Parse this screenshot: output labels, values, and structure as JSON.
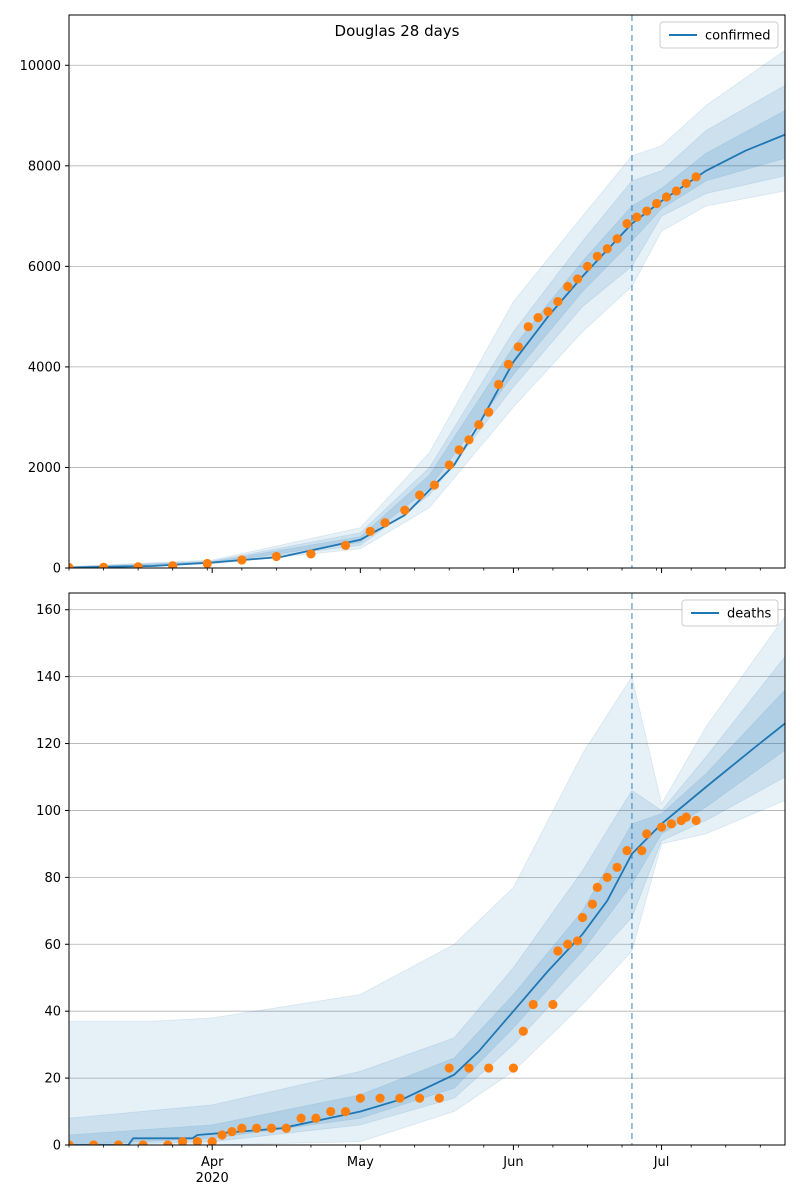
{
  "figure": {
    "title": "Douglas 28 days"
  },
  "chart_data": [
    {
      "type": "line",
      "title": "Douglas 28 days",
      "xlabel": "",
      "ylabel": "",
      "x_axis": {
        "range": [
          "2020-03-03",
          "2020-07-26"
        ],
        "tick_labels": [
          {
            "date": "2020-04-01",
            "label": "Apr",
            "sublabel": "2020"
          },
          {
            "date": "2020-05-01",
            "label": "May",
            "sublabel": ""
          },
          {
            "date": "2020-06-01",
            "label": "Jun",
            "sublabel": ""
          },
          {
            "date": "2020-07-01",
            "label": "Jul",
            "sublabel": ""
          }
        ]
      },
      "ylim": [
        0,
        11000
      ],
      "yticks": [
        0,
        2000,
        4000,
        6000,
        8000,
        10000
      ],
      "ytick_labels": [
        "0",
        "2000",
        "4000",
        "6000",
        "8000",
        "10000"
      ],
      "grid": "horizontal",
      "legend": {
        "position": "top-right",
        "entries": [
          "confirmed"
        ]
      },
      "vline_date": "2020-06-25",
      "colors": {
        "model": "#1f77b4",
        "observed": "#ff7f0e",
        "band": "#1f77b4",
        "vline": "#1f77b4"
      },
      "series": [
        {
          "name": "confirmed",
          "kind": "line",
          "points": [
            [
              "2020-03-03",
              10
            ],
            [
              "2020-03-20",
              40
            ],
            [
              "2020-04-01",
              110
            ],
            [
              "2020-04-15",
              220
            ],
            [
              "2020-05-01",
              560
            ],
            [
              "2020-05-10",
              1050
            ],
            [
              "2020-05-20",
              2050
            ],
            [
              "2020-05-25",
              2850
            ],
            [
              "2020-06-01",
              4100
            ],
            [
              "2020-06-08",
              5000
            ],
            [
              "2020-06-15",
              5800
            ],
            [
              "2020-06-25",
              6850
            ],
            [
              "2020-07-01",
              7300
            ],
            [
              "2020-07-10",
              7900
            ],
            [
              "2020-07-18",
              8300
            ],
            [
              "2020-07-26",
              8620
            ]
          ]
        },
        {
          "name": "observed",
          "kind": "points",
          "points": [
            [
              "2020-03-03",
              10
            ],
            [
              "2020-03-10",
              15
            ],
            [
              "2020-03-17",
              25
            ],
            [
              "2020-03-24",
              45
            ],
            [
              "2020-03-31",
              90
            ],
            [
              "2020-04-07",
              160
            ],
            [
              "2020-04-14",
              230
            ],
            [
              "2020-04-21",
              280
            ],
            [
              "2020-04-28",
              450
            ],
            [
              "2020-05-03",
              730
            ],
            [
              "2020-05-06",
              900
            ],
            [
              "2020-05-10",
              1150
            ],
            [
              "2020-05-13",
              1450
            ],
            [
              "2020-05-16",
              1650
            ],
            [
              "2020-05-19",
              2050
            ],
            [
              "2020-05-21",
              2350
            ],
            [
              "2020-05-23",
              2550
            ],
            [
              "2020-05-25",
              2850
            ],
            [
              "2020-05-27",
              3100
            ],
            [
              "2020-05-29",
              3650
            ],
            [
              "2020-05-31",
              4050
            ],
            [
              "2020-06-02",
              4400
            ],
            [
              "2020-06-04",
              4800
            ],
            [
              "2020-06-06",
              4980
            ],
            [
              "2020-06-08",
              5100
            ],
            [
              "2020-06-10",
              5300
            ],
            [
              "2020-06-12",
              5600
            ],
            [
              "2020-06-14",
              5750
            ],
            [
              "2020-06-16",
              6000
            ],
            [
              "2020-06-18",
              6200
            ],
            [
              "2020-06-20",
              6350
            ],
            [
              "2020-06-22",
              6550
            ],
            [
              "2020-06-24",
              6850
            ],
            [
              "2020-06-26",
              6980
            ],
            [
              "2020-06-28",
              7100
            ],
            [
              "2020-06-30",
              7250
            ],
            [
              "2020-07-02",
              7380
            ],
            [
              "2020-07-04",
              7500
            ],
            [
              "2020-07-06",
              7650
            ],
            [
              "2020-07-08",
              7780
            ]
          ]
        }
      ],
      "bands": [
        {
          "level": "outer",
          "points": [
            [
              "2020-03-03",
              0,
              30
            ],
            [
              "2020-04-01",
              80,
              160
            ],
            [
              "2020-05-01",
              380,
              800
            ],
            [
              "2020-05-15",
              1200,
              2300
            ],
            [
              "2020-06-01",
              3200,
              5300
            ],
            [
              "2020-06-15",
              4700,
              7000
            ],
            [
              "2020-06-25",
              5600,
              8200
            ],
            [
              "2020-07-01",
              6700,
              8400
            ],
            [
              "2020-07-10",
              7200,
              9200
            ],
            [
              "2020-07-26",
              7500,
              10300
            ]
          ]
        },
        {
          "level": "middle",
          "points": [
            [
              "2020-03-03",
              2,
              22
            ],
            [
              "2020-04-01",
              90,
              140
            ],
            [
              "2020-05-01",
              450,
              700
            ],
            [
              "2020-05-15",
              1450,
              2000
            ],
            [
              "2020-06-01",
              3600,
              4700
            ],
            [
              "2020-06-15",
              5200,
              6500
            ],
            [
              "2020-06-25",
              6000,
              7700
            ],
            [
              "2020-07-01",
              7000,
              7900
            ],
            [
              "2020-07-10",
              7450,
              8700
            ],
            [
              "2020-07-26",
              7800,
              9600
            ]
          ]
        },
        {
          "level": "inner",
          "points": [
            [
              "2020-03-03",
              5,
              16
            ],
            [
              "2020-04-01",
              100,
              125
            ],
            [
              "2020-05-01",
              510,
              620
            ],
            [
              "2020-05-15",
              1600,
              1850
            ],
            [
              "2020-06-01",
              3850,
              4400
            ],
            [
              "2020-06-15",
              5500,
              6100
            ],
            [
              "2020-06-25",
              6500,
              7200
            ],
            [
              "2020-07-01",
              7150,
              7550
            ],
            [
              "2020-07-10",
              7700,
              8250
            ],
            [
              "2020-07-26",
              8150,
              9100
            ]
          ]
        }
      ]
    },
    {
      "type": "line",
      "title": "",
      "xlabel": "",
      "ylabel": "",
      "x_axis": {
        "range": [
          "2020-03-03",
          "2020-07-26"
        ],
        "tick_labels": [
          {
            "date": "2020-04-01",
            "label": "Apr",
            "sublabel": "2020"
          },
          {
            "date": "2020-05-01",
            "label": "May",
            "sublabel": ""
          },
          {
            "date": "2020-06-01",
            "label": "Jun",
            "sublabel": ""
          },
          {
            "date": "2020-07-01",
            "label": "Jul",
            "sublabel": ""
          }
        ]
      },
      "ylim": [
        0,
        165
      ],
      "yticks": [
        0,
        20,
        40,
        60,
        80,
        100,
        120,
        140,
        160
      ],
      "ytick_labels": [
        "0",
        "20",
        "40",
        "60",
        "80",
        "100",
        "120",
        "140",
        "160"
      ],
      "grid": "horizontal",
      "legend": {
        "position": "top-right",
        "entries": [
          "deaths"
        ]
      },
      "vline_date": "2020-06-25",
      "colors": {
        "model": "#1f77b4",
        "observed": "#ff7f0e",
        "band": "#1f77b4",
        "vline": "#1f77b4"
      },
      "series": [
        {
          "name": "deaths",
          "kind": "line",
          "points": [
            [
              "2020-03-03",
              0
            ],
            [
              "2020-03-15",
              0
            ],
            [
              "2020-03-16",
              2
            ],
            [
              "2020-03-28",
              2
            ],
            [
              "2020-03-29",
              3
            ],
            [
              "2020-04-15",
              5
            ],
            [
              "2020-05-01",
              10
            ],
            [
              "2020-05-10",
              14
            ],
            [
              "2020-05-20",
              21
            ],
            [
              "2020-05-25",
              28
            ],
            [
              "2020-06-01",
              40
            ],
            [
              "2020-06-08",
              52
            ],
            [
              "2020-06-15",
              63
            ],
            [
              "2020-06-20",
              73
            ],
            [
              "2020-06-25",
              87
            ],
            [
              "2020-07-01",
              96
            ],
            [
              "2020-07-10",
              107
            ],
            [
              "2020-07-20",
              119
            ],
            [
              "2020-07-26",
              126
            ]
          ]
        },
        {
          "name": "observed",
          "kind": "points",
          "points": [
            [
              "2020-03-03",
              0
            ],
            [
              "2020-03-08",
              0
            ],
            [
              "2020-03-13",
              0
            ],
            [
              "2020-03-18",
              0
            ],
            [
              "2020-03-23",
              0
            ],
            [
              "2020-03-26",
              1
            ],
            [
              "2020-03-29",
              1
            ],
            [
              "2020-04-01",
              1
            ],
            [
              "2020-04-03",
              3
            ],
            [
              "2020-04-05",
              4
            ],
            [
              "2020-04-07",
              5
            ],
            [
              "2020-04-10",
              5
            ],
            [
              "2020-04-13",
              5
            ],
            [
              "2020-04-16",
              5
            ],
            [
              "2020-04-19",
              8
            ],
            [
              "2020-04-22",
              8
            ],
            [
              "2020-04-25",
              10
            ],
            [
              "2020-04-28",
              10
            ],
            [
              "2020-05-01",
              14
            ],
            [
              "2020-05-05",
              14
            ],
            [
              "2020-05-09",
              14
            ],
            [
              "2020-05-13",
              14
            ],
            [
              "2020-05-17",
              14
            ],
            [
              "2020-05-19",
              23
            ],
            [
              "2020-05-23",
              23
            ],
            [
              "2020-05-27",
              23
            ],
            [
              "2020-06-01",
              23
            ],
            [
              "2020-06-03",
              34
            ],
            [
              "2020-06-05",
              42
            ],
            [
              "2020-06-09",
              42
            ],
            [
              "2020-06-10",
              58
            ],
            [
              "2020-06-12",
              60
            ],
            [
              "2020-06-14",
              61
            ],
            [
              "2020-06-15",
              68
            ],
            [
              "2020-06-17",
              72
            ],
            [
              "2020-06-18",
              77
            ],
            [
              "2020-06-20",
              80
            ],
            [
              "2020-06-22",
              83
            ],
            [
              "2020-06-24",
              88
            ],
            [
              "2020-06-27",
              88
            ],
            [
              "2020-06-28",
              93
            ],
            [
              "2020-07-01",
              95
            ],
            [
              "2020-07-03",
              96
            ],
            [
              "2020-07-05",
              97
            ],
            [
              "2020-07-06",
              98
            ],
            [
              "2020-07-08",
              97
            ]
          ]
        }
      ],
      "bands": [
        {
          "level": "outer",
          "points": [
            [
              "2020-03-03",
              0,
              37
            ],
            [
              "2020-03-20",
              0,
              37
            ],
            [
              "2020-04-01",
              0,
              38
            ],
            [
              "2020-05-01",
              1,
              45
            ],
            [
              "2020-05-20",
              10,
              60
            ],
            [
              "2020-06-01",
              22,
              77
            ],
            [
              "2020-06-15",
              42,
              117
            ],
            [
              "2020-06-25",
              58,
              140
            ],
            [
              "2020-07-01",
              90,
              102
            ],
            [
              "2020-07-10",
              93,
              125
            ],
            [
              "2020-07-26",
              103,
              158
            ]
          ]
        },
        {
          "level": "middle",
          "points": [
            [
              "2020-03-03",
              0,
              8
            ],
            [
              "2020-04-01",
              1,
              12
            ],
            [
              "2020-05-01",
              6,
              22
            ],
            [
              "2020-05-20",
              14,
              32
            ],
            [
              "2020-06-01",
              30,
              53
            ],
            [
              "2020-06-15",
              52,
              82
            ],
            [
              "2020-06-25",
              68,
              106
            ],
            [
              "2020-07-01",
              91,
              100
            ],
            [
              "2020-07-10",
              97,
              116
            ],
            [
              "2020-07-26",
              110,
              146
            ]
          ]
        },
        {
          "level": "inner",
          "points": [
            [
              "2020-03-03",
              0,
              3
            ],
            [
              "2020-04-01",
              2,
              6
            ],
            [
              "2020-05-01",
              8,
              15
            ],
            [
              "2020-05-20",
              17,
              26
            ],
            [
              "2020-06-01",
              35,
              45
            ],
            [
              "2020-06-15",
              58,
              70
            ],
            [
              "2020-06-25",
              78,
              96
            ],
            [
              "2020-07-01",
              93,
              99
            ],
            [
              "2020-07-10",
              101,
              111
            ],
            [
              "2020-07-26",
              118,
              136
            ]
          ]
        }
      ]
    }
  ]
}
